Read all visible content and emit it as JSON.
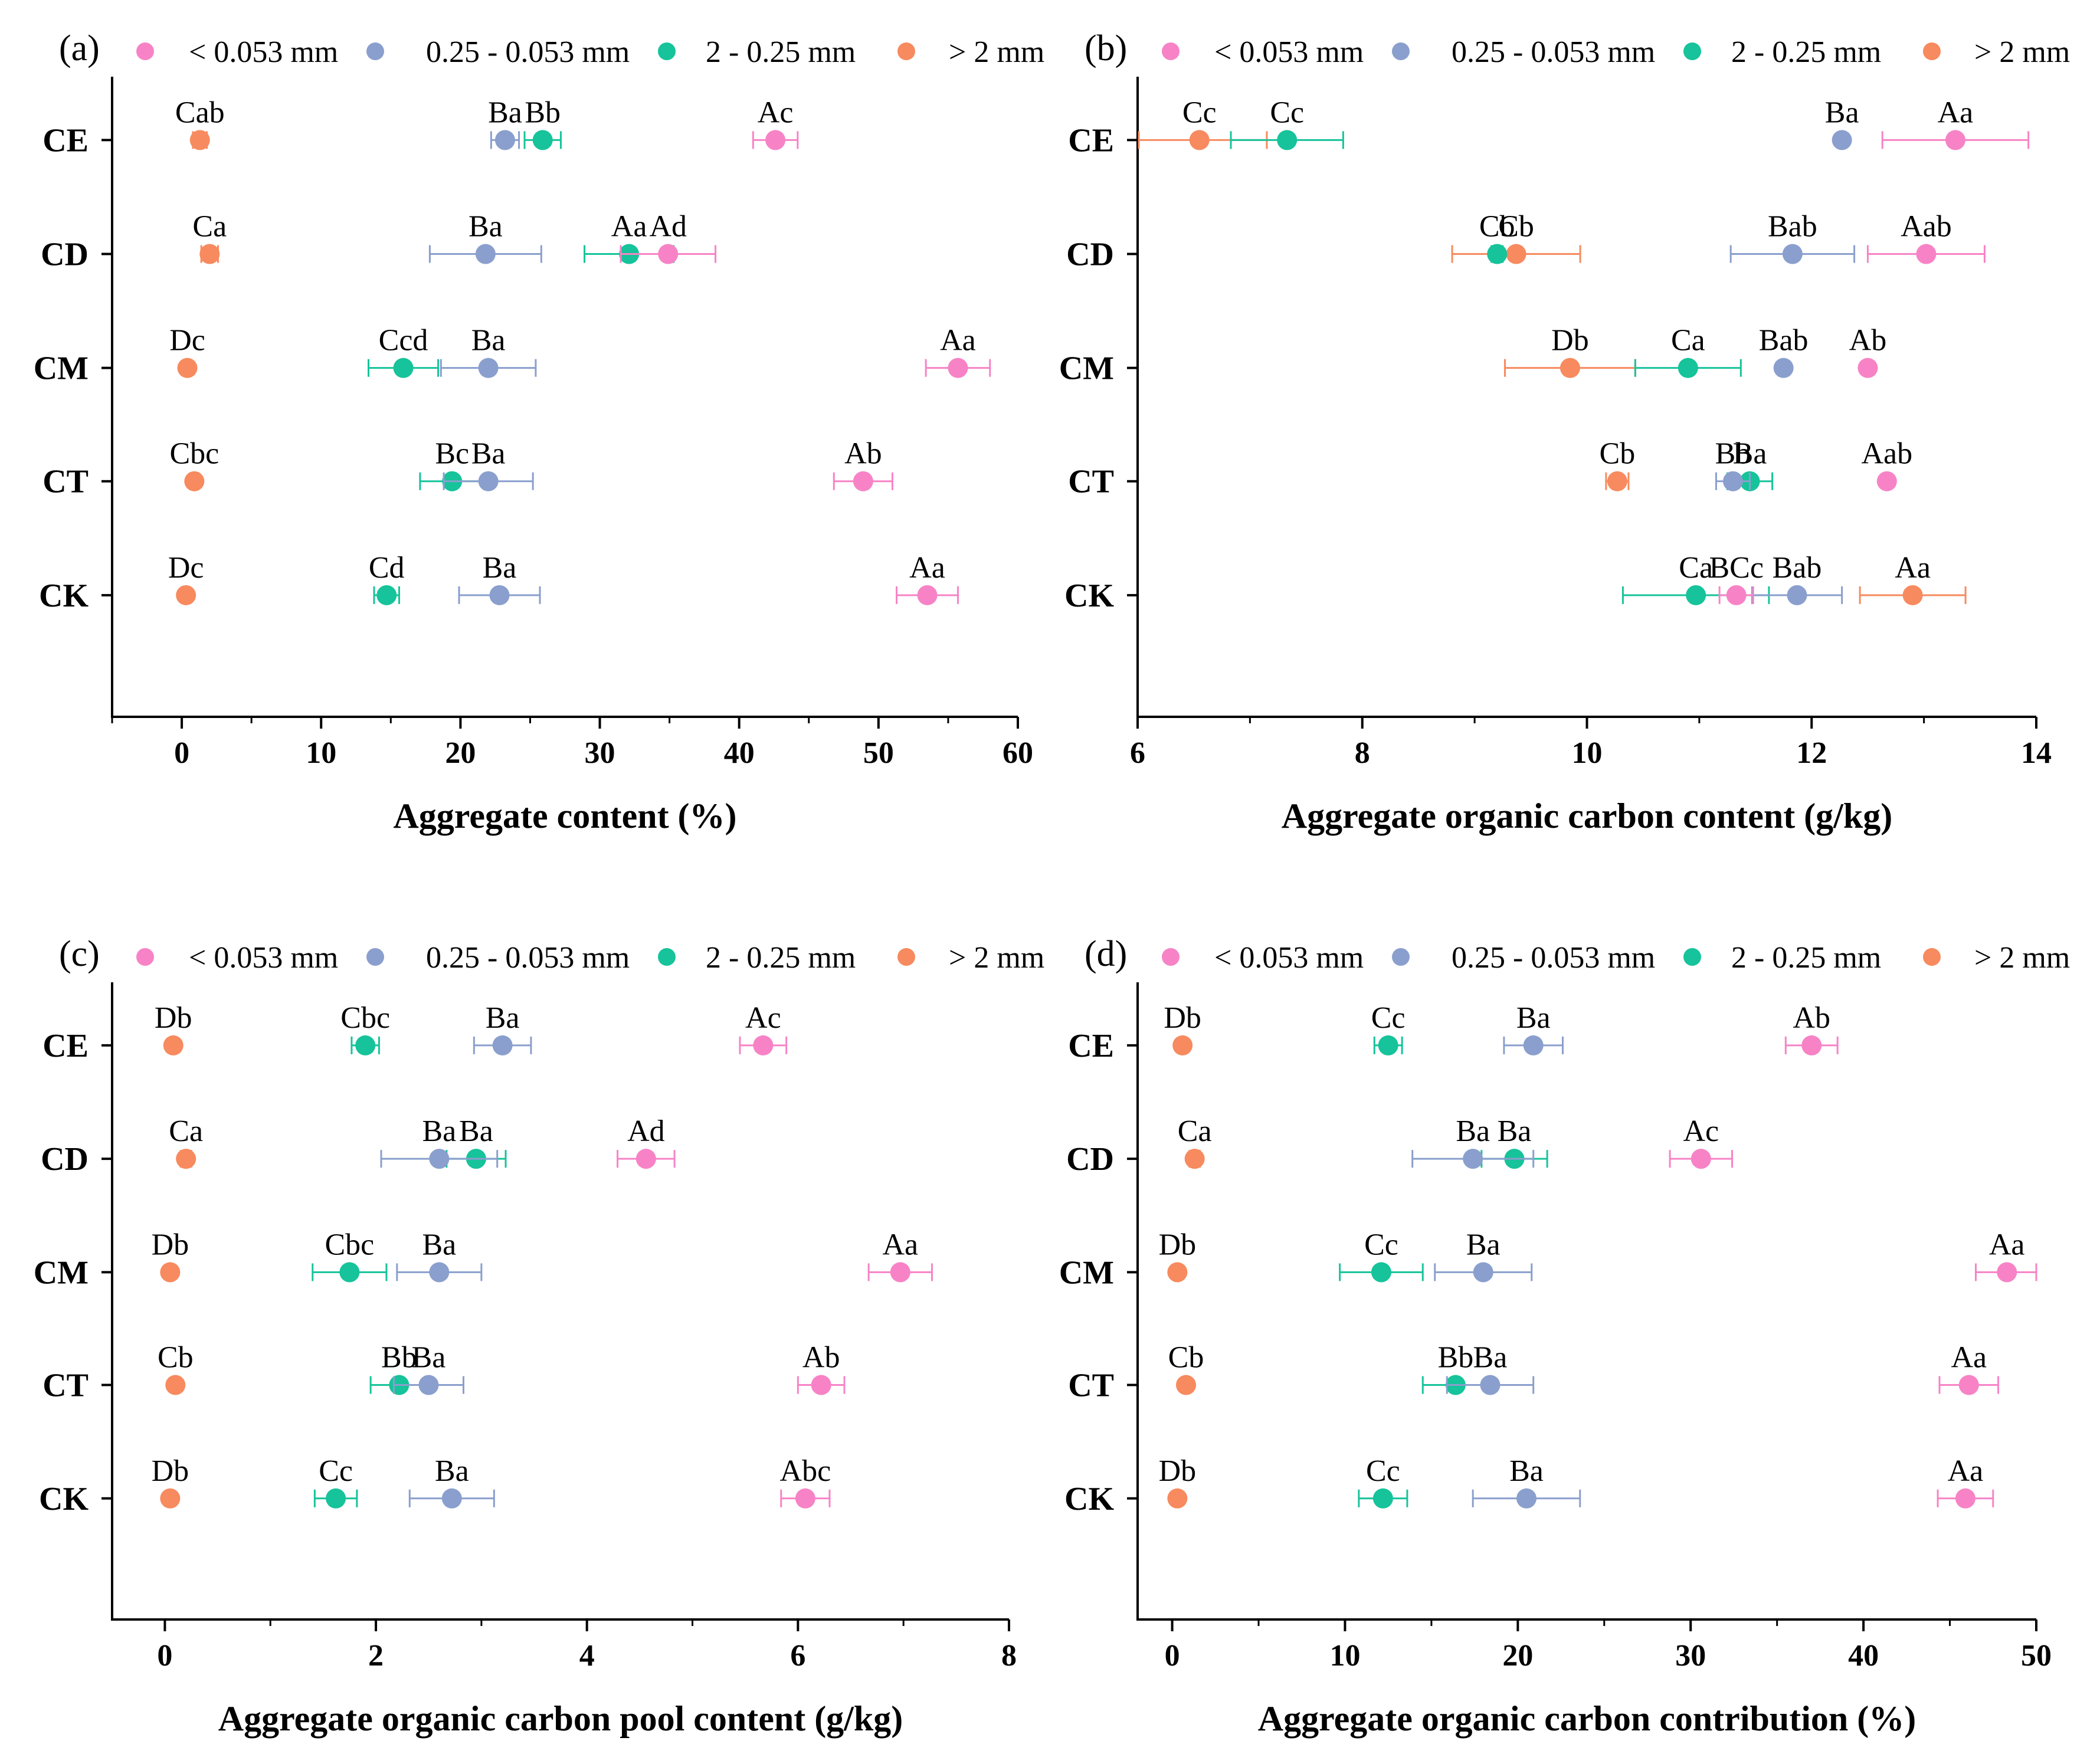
{
  "colors": {
    "< 0.053 mm": "#F783C6",
    "0.25 - 0.053 mm": "#8A9FCD",
    "2 - 0.25 mm": "#16C39A",
    "> 2 mm": "#F78A5E"
  },
  "chart_data": [
    {
      "type": "scatter",
      "panel": "(a)",
      "xlabel": "Aggregate content (%)",
      "xlim": [
        -5,
        60
      ],
      "xticks": [
        0,
        10,
        20,
        30,
        40,
        50,
        60
      ],
      "categories": [
        "CE",
        "CD",
        "CM",
        "CT",
        "CK"
      ],
      "legend": [
        "< 0.053 mm",
        "0.25 - 0.053 mm",
        "2 - 0.25 mm",
        "> 2 mm"
      ],
      "series": [
        {
          "name": "> 2 mm",
          "points": [
            {
              "cat": "CE",
              "x": 1.3,
              "err": 0.5,
              "label": "Cab"
            },
            {
              "cat": "CD",
              "x": 2.0,
              "err": 0.6,
              "label": "Ca"
            },
            {
              "cat": "CM",
              "x": 0.4,
              "err": 0.3,
              "label": "Dc"
            },
            {
              "cat": "CT",
              "x": 0.9,
              "err": 0.3,
              "label": "Cbc"
            },
            {
              "cat": "CK",
              "x": 0.3,
              "err": 0.3,
              "label": "Dc"
            }
          ]
        },
        {
          "name": "2 - 0.25 mm",
          "points": [
            {
              "cat": "CE",
              "x": 25.9,
              "err": 1.3,
              "label": "Bb"
            },
            {
              "cat": "CD",
              "x": 32.1,
              "err": 3.2,
              "label": "Aa"
            },
            {
              "cat": "CM",
              "x": 15.9,
              "err": 2.5,
              "label": "Ccd"
            },
            {
              "cat": "CT",
              "x": 19.4,
              "err": 2.3,
              "label": "Bc"
            },
            {
              "cat": "CK",
              "x": 14.7,
              "err": 0.9,
              "label": "Cd"
            }
          ]
        },
        {
          "name": "0.25 - 0.053 mm",
          "points": [
            {
              "cat": "CE",
              "x": 23.2,
              "err": 1.0,
              "label": "Ba"
            },
            {
              "cat": "CD",
              "x": 21.8,
              "err": 4.0,
              "label": "Ba"
            },
            {
              "cat": "CM",
              "x": 22.0,
              "err": 3.4,
              "label": "Ba"
            },
            {
              "cat": "CT",
              "x": 22.0,
              "err": 3.2,
              "label": "Ba"
            },
            {
              "cat": "CK",
              "x": 22.8,
              "err": 2.9,
              "label": "Ba"
            }
          ]
        },
        {
          "name": "< 0.053 mm",
          "points": [
            {
              "cat": "CE",
              "x": 42.6,
              "err": 1.6,
              "label": "Ac"
            },
            {
              "cat": "CD",
              "x": 34.9,
              "err": 3.4,
              "label": "Ad"
            },
            {
              "cat": "CM",
              "x": 55.7,
              "err": 2.3,
              "label": "Aa"
            },
            {
              "cat": "CT",
              "x": 48.9,
              "err": 2.1,
              "label": "Ab"
            },
            {
              "cat": "CK",
              "x": 53.5,
              "err": 2.2,
              "label": "Aa"
            }
          ]
        }
      ]
    },
    {
      "type": "scatter",
      "panel": "(b)",
      "xlabel": "Aggregate organic carbon content (g/kg)",
      "xlim": [
        6,
        14
      ],
      "xticks": [
        6,
        8,
        10,
        12,
        14
      ],
      "categories": [
        "CE",
        "CD",
        "CM",
        "CT",
        "CK"
      ],
      "legend": [
        "< 0.053 mm",
        "0.25 - 0.053 mm",
        "2 - 0.25 mm",
        "> 2 mm"
      ],
      "series": [
        {
          "name": "> 2 mm",
          "points": [
            {
              "cat": "CE",
              "x": 6.55,
              "err": 0.6,
              "label": "Cc"
            },
            {
              "cat": "CD",
              "x": 9.37,
              "err": 0.57,
              "label": "Cb"
            },
            {
              "cat": "CM",
              "x": 9.85,
              "err": 0.58,
              "label": "Db"
            },
            {
              "cat": "CT",
              "x": 10.27,
              "err": 0.1,
              "label": "Cb"
            },
            {
              "cat": "CK",
              "x": 12.9,
              "err": 0.47,
              "label": "Aa"
            }
          ]
        },
        {
          "name": "2 - 0.25 mm",
          "points": [
            {
              "cat": "CE",
              "x": 7.33,
              "err": 0.5,
              "label": "Cc"
            },
            {
              "cat": "CD",
              "x": 9.2,
              "err": 0.05,
              "label": "Cb"
            },
            {
              "cat": "CM",
              "x": 10.9,
              "err": 0.47,
              "label": "Ca"
            },
            {
              "cat": "CT",
              "x": 11.45,
              "err": 0.2,
              "label": "Ba"
            },
            {
              "cat": "CK",
              "x": 10.97,
              "err": 0.65,
              "label": "Ca"
            }
          ]
        },
        {
          "name": "0.25 - 0.053 mm",
          "points": [
            {
              "cat": "CE",
              "x": 12.27,
              "err": 0.0,
              "label": "Ba"
            },
            {
              "cat": "CD",
              "x": 11.83,
              "err": 0.55,
              "label": "Bab"
            },
            {
              "cat": "CM",
              "x": 11.75,
              "err": 0.0,
              "label": "Bab"
            },
            {
              "cat": "CT",
              "x": 11.3,
              "err": 0.15,
              "label": "Bb"
            },
            {
              "cat": "CK",
              "x": 11.87,
              "err": 0.4,
              "label": "Bab"
            }
          ]
        },
        {
          "name": "< 0.053 mm",
          "points": [
            {
              "cat": "CE",
              "x": 13.28,
              "err": 0.65,
              "label": "Aa"
            },
            {
              "cat": "CD",
              "x": 13.02,
              "err": 0.52,
              "label": "Aab"
            },
            {
              "cat": "CM",
              "x": 12.5,
              "err": 0.0,
              "label": "Ab"
            },
            {
              "cat": "CT",
              "x": 12.67,
              "err": 0.0,
              "label": "Aab"
            },
            {
              "cat": "CK",
              "x": 11.33,
              "err": 0.15,
              "label": "BCc"
            }
          ]
        }
      ]
    },
    {
      "type": "scatter",
      "panel": "(c)",
      "xlabel": "Aggregate organic carbon pool content (g/kg)",
      "xlim": [
        -0.5,
        8
      ],
      "xticks": [
        0,
        2,
        4,
        6,
        8
      ],
      "categories": [
        "CE",
        "CD",
        "CM",
        "CT",
        "CK"
      ],
      "legend": [
        "< 0.053 mm",
        "0.25 - 0.053 mm",
        "2 - 0.25 mm",
        "> 2 mm"
      ],
      "series": [
        {
          "name": "> 2 mm",
          "points": [
            {
              "cat": "CE",
              "x": 0.08,
              "err": 0.03,
              "label": "Db"
            },
            {
              "cat": "CD",
              "x": 0.2,
              "err": 0.05,
              "label": "Ca"
            },
            {
              "cat": "CM",
              "x": 0.05,
              "err": 0.02,
              "label": "Db"
            },
            {
              "cat": "CT",
              "x": 0.1,
              "err": 0.03,
              "label": "Cb"
            },
            {
              "cat": "CK",
              "x": 0.05,
              "err": 0.02,
              "label": "Db"
            }
          ]
        },
        {
          "name": "2 - 0.25 mm",
          "points": [
            {
              "cat": "CE",
              "x": 1.9,
              "err": 0.13,
              "label": "Cbc"
            },
            {
              "cat": "CD",
              "x": 2.95,
              "err": 0.28,
              "label": "Ba"
            },
            {
              "cat": "CM",
              "x": 1.75,
              "err": 0.35,
              "label": "Cbc"
            },
            {
              "cat": "CT",
              "x": 2.22,
              "err": 0.27,
              "label": "Bb"
            },
            {
              "cat": "CK",
              "x": 1.62,
              "err": 0.2,
              "label": "Cc"
            }
          ]
        },
        {
          "name": "0.25 - 0.053 mm",
          "points": [
            {
              "cat": "CE",
              "x": 3.2,
              "err": 0.27,
              "label": "Ba"
            },
            {
              "cat": "CD",
              "x": 2.6,
              "err": 0.55,
              "label": "Ba"
            },
            {
              "cat": "CM",
              "x": 2.6,
              "err": 0.4,
              "label": "Ba"
            },
            {
              "cat": "CT",
              "x": 2.5,
              "err": 0.33,
              "label": "Ba"
            },
            {
              "cat": "CK",
              "x": 2.72,
              "err": 0.4,
              "label": "Ba"
            }
          ]
        },
        {
          "name": "< 0.053 mm",
          "points": [
            {
              "cat": "CE",
              "x": 5.67,
              "err": 0.22,
              "label": "Ac"
            },
            {
              "cat": "CD",
              "x": 4.56,
              "err": 0.27,
              "label": "Ad"
            },
            {
              "cat": "CM",
              "x": 6.97,
              "err": 0.3,
              "label": "Aa"
            },
            {
              "cat": "CT",
              "x": 6.22,
              "err": 0.22,
              "label": "Ab"
            },
            {
              "cat": "CK",
              "x": 6.07,
              "err": 0.23,
              "label": "Abc"
            }
          ]
        }
      ]
    },
    {
      "type": "scatter",
      "panel": "(d)",
      "xlabel": "Aggregate organic carbon contribution (%)",
      "xlim": [
        -2,
        50
      ],
      "xticks": [
        0,
        10,
        20,
        30,
        40,
        50
      ],
      "categories": [
        "CE",
        "CD",
        "CM",
        "CT",
        "CK"
      ],
      "legend": [
        "< 0.053 mm",
        "0.25 - 0.053 mm",
        "2 - 0.25 mm",
        "> 2 mm"
      ],
      "series": [
        {
          "name": "> 2 mm",
          "points": [
            {
              "cat": "CE",
              "x": 0.6,
              "err": 0.2,
              "label": "Db"
            },
            {
              "cat": "CD",
              "x": 1.3,
              "err": 0.3,
              "label": "Ca"
            },
            {
              "cat": "CM",
              "x": 0.3,
              "err": 0.1,
              "label": "Db"
            },
            {
              "cat": "CT",
              "x": 0.8,
              "err": 0.2,
              "label": "Cb"
            },
            {
              "cat": "CK",
              "x": 0.3,
              "err": 0.1,
              "label": "Db"
            }
          ]
        },
        {
          "name": "2 - 0.25 mm",
          "points": [
            {
              "cat": "CE",
              "x": 12.5,
              "err": 0.8,
              "label": "Cc"
            },
            {
              "cat": "CD",
              "x": 19.8,
              "err": 1.9,
              "label": "Ba"
            },
            {
              "cat": "CM",
              "x": 12.1,
              "err": 2.4,
              "label": "Cc"
            },
            {
              "cat": "CT",
              "x": 16.4,
              "err": 1.9,
              "label": "Bb"
            },
            {
              "cat": "CK",
              "x": 12.2,
              "err": 1.4,
              "label": "Cc"
            }
          ]
        },
        {
          "name": "0.25 - 0.053 mm",
          "points": [
            {
              "cat": "CE",
              "x": 20.9,
              "err": 1.7,
              "label": "Ba"
            },
            {
              "cat": "CD",
              "x": 17.4,
              "err": 3.5,
              "label": "Ba"
            },
            {
              "cat": "CM",
              "x": 18.0,
              "err": 2.8,
              "label": "Ba"
            },
            {
              "cat": "CT",
              "x": 18.4,
              "err": 2.5,
              "label": "Ba"
            },
            {
              "cat": "CK",
              "x": 20.5,
              "err": 3.1,
              "label": "Ba"
            }
          ]
        },
        {
          "name": "< 0.053 mm",
          "points": [
            {
              "cat": "CE",
              "x": 37.0,
              "err": 1.5,
              "label": "Ab"
            },
            {
              "cat": "CD",
              "x": 30.6,
              "err": 1.8,
              "label": "Ac"
            },
            {
              "cat": "CM",
              "x": 48.3,
              "err": 1.8,
              "label": "Aa"
            },
            {
              "cat": "CT",
              "x": 46.1,
              "err": 1.7,
              "label": "Aa"
            },
            {
              "cat": "CK",
              "x": 45.9,
              "err": 1.6,
              "label": "Aa"
            }
          ]
        }
      ]
    }
  ]
}
